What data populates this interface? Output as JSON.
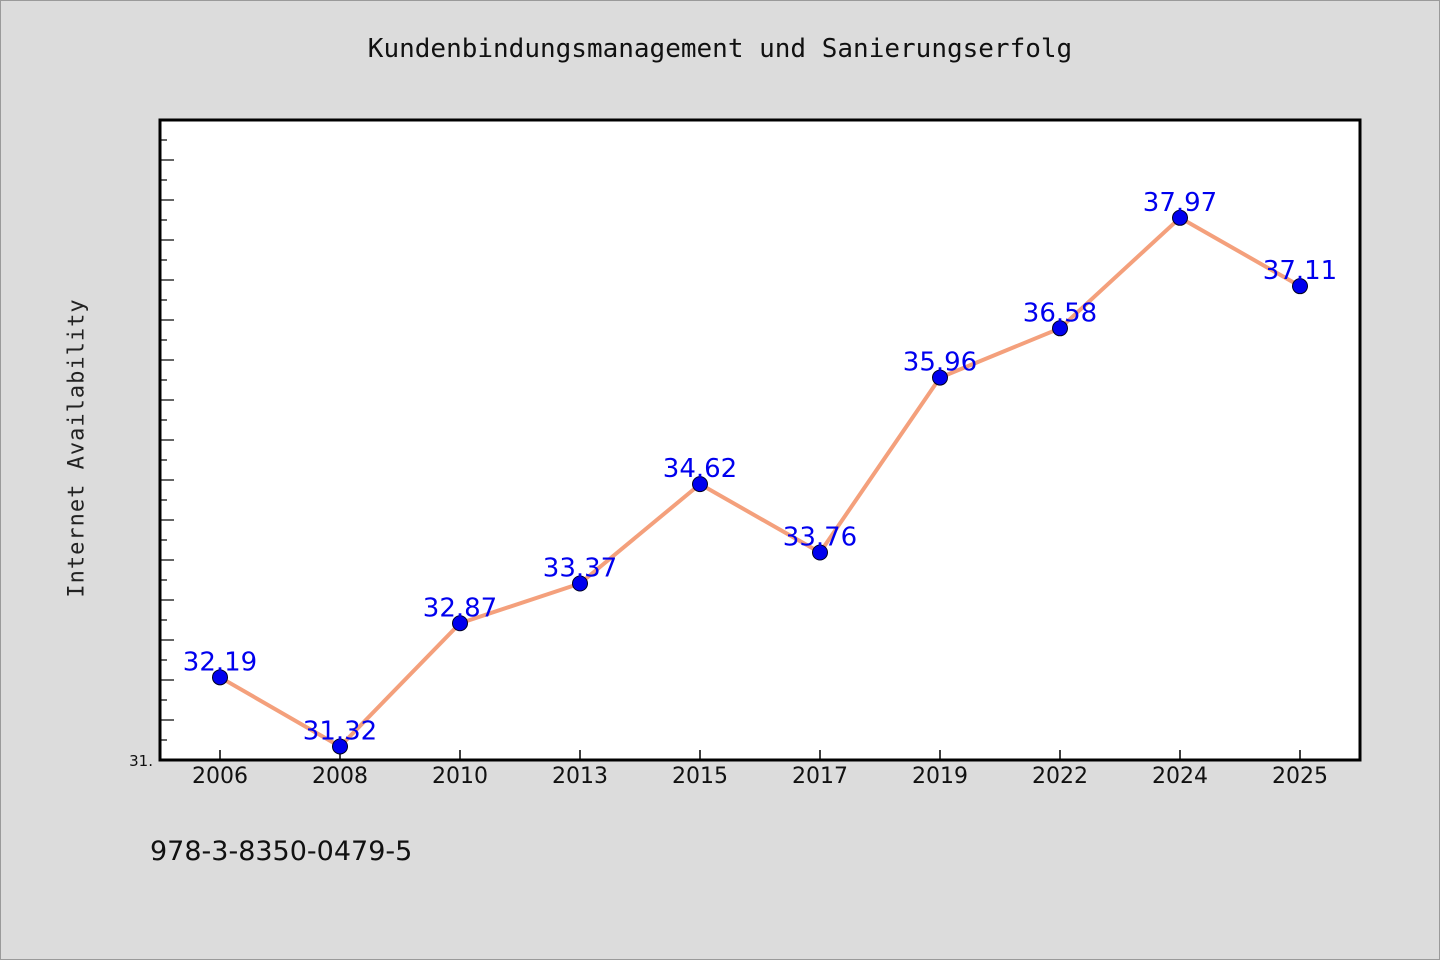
{
  "chart_data": {
    "type": "line",
    "title": "Kundenbindungsmanagement und Sanierungserfolg",
    "xlabel": "",
    "ylabel": "Internet Availability",
    "categories": [
      "2006",
      "2008",
      "2010",
      "2013",
      "2015",
      "2017",
      "2019",
      "2022",
      "2024",
      "2025"
    ],
    "series": [
      {
        "values": [
          32.19,
          31.32,
          32.87,
          33.37,
          34.62,
          33.76,
          35.96,
          36.58,
          37.97,
          37.11
        ],
        "labels": [
          "32.19",
          "31.32",
          "32.87",
          "33.37",
          "34.62",
          "33.76",
          "35.96",
          "36.58",
          "37.97",
          "37.11"
        ]
      }
    ],
    "ylim": [
      31.15,
      39.2
    ],
    "y_tick_label": "31.",
    "grid": false,
    "legend": "none",
    "colors": {
      "line": "#f4a07c",
      "marker": "#0000ee",
      "label": "#0000ee",
      "background": "#dcdcdc",
      "plot_background": "#ffffff"
    }
  },
  "footer": {
    "isbn": "978-3-8350-0479-5"
  }
}
